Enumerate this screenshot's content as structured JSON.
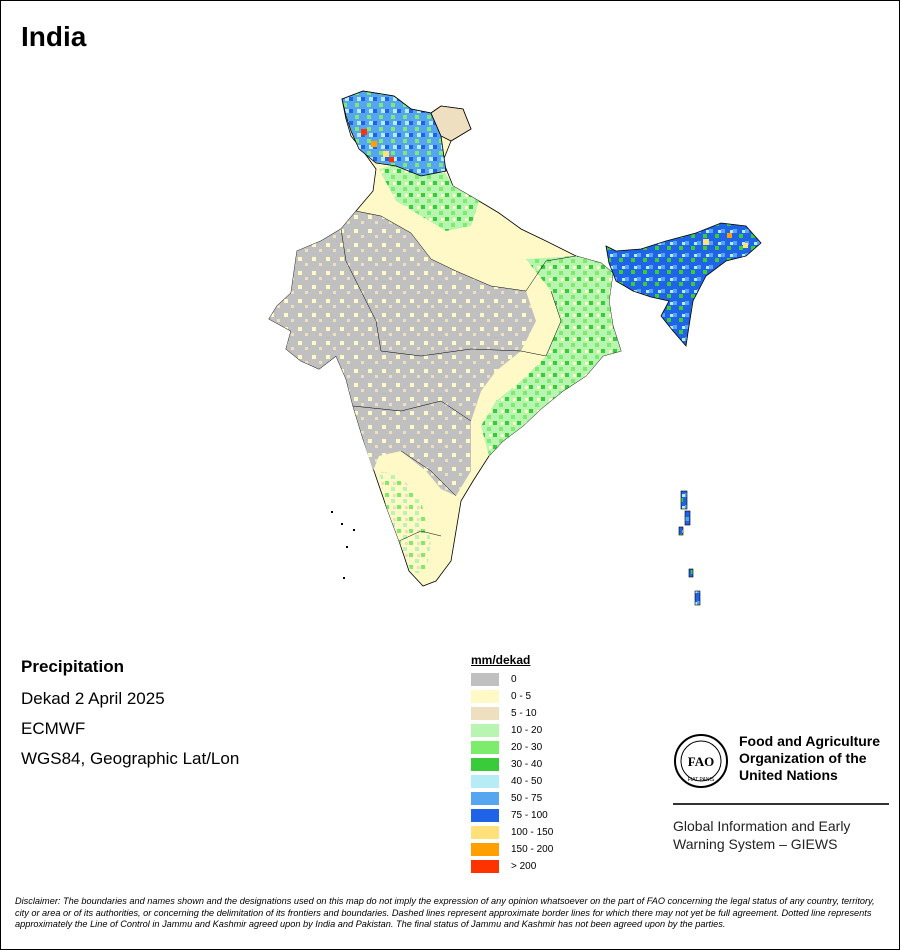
{
  "map": {
    "title": "India",
    "variable": "Precipitation",
    "period": "Dekad 2 April 2025",
    "source": "ECMWF",
    "projection": "WGS84, Geographic Lat/Lon"
  },
  "legend": {
    "title": "mm/dekad",
    "items": [
      {
        "label": "0",
        "color": "#c0c0c0"
      },
      {
        "label": "0 - 5",
        "color": "#fff9c8"
      },
      {
        "label": "5 - 10",
        "color": "#eedfc0"
      },
      {
        "label": "10 - 20",
        "color": "#b7f5b1"
      },
      {
        "label": "20 - 30",
        "color": "#7deb6c"
      },
      {
        "label": "30 - 40",
        "color": "#3acb3a"
      },
      {
        "label": "40 - 50",
        "color": "#b5ecf5"
      },
      {
        "label": "50 - 75",
        "color": "#55a5f0"
      },
      {
        "label": "75 - 100",
        "color": "#1f64e6"
      },
      {
        "label": "100 - 150",
        "color": "#ffe07a"
      },
      {
        "label": "150 - 200",
        "color": "#ffa000"
      },
      {
        "label": "> 200",
        "color": "#ff3300"
      }
    ]
  },
  "organization": {
    "logo_text": "FAO",
    "logo_motto": "FIAT PANIS",
    "name_line1": "Food and Agriculture",
    "name_line2": "Organization of the",
    "name_line3": "United Nations",
    "system_line1": "Global Information and Early",
    "system_line2": "Warning System – GIEWS"
  },
  "disclaimer": "Disclaimer: The boundaries and names shown and the designations used on this map do not imply the expression of any opinion whatsoever on the part of FAO concerning the legal status of any country, territory, city or area or of its authorities, or concerning the delimitation of its frontiers and boundaries. Dashed lines represent approximate border lines for which there may not yet be full agreement. Dotted line represents approximately the Line of Control in Jammu and Kashmir agreed upon by India and Pakistan. The final status of Jammu and Kashmir has not been agreed upon by the parties."
}
